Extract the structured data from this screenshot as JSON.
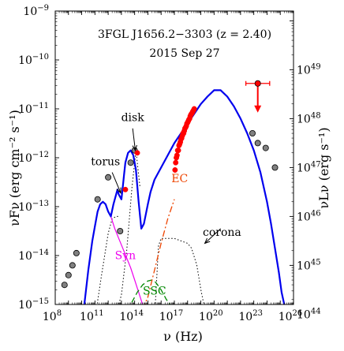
{
  "chart_data": {
    "type": "line",
    "title": "3FGL J1656.2−3303 (z = 2.40)",
    "subtitle": "2015 Sep 27",
    "xlabel": "ν (Hz)",
    "ylabel": "νFν (erg cm⁻² s⁻¹)",
    "y2label": "νLν (erg s⁻¹)",
    "x_scale": "log",
    "y_scale": "log",
    "xlim_log10": [
      8,
      26
    ],
    "ylim_log10": [
      -15,
      -9
    ],
    "x_ticks": [
      {
        "log": 8,
        "label": "10",
        "exp": "8"
      },
      {
        "log": 11,
        "label": "10",
        "exp": "11"
      },
      {
        "log": 14,
        "label": "10",
        "exp": "14"
      },
      {
        "log": 17,
        "label": "10",
        "exp": "17"
      },
      {
        "log": 20,
        "label": "10",
        "exp": "20"
      },
      {
        "log": 23,
        "label": "10",
        "exp": "23"
      },
      {
        "log": 26,
        "label": "10",
        "exp": "26"
      }
    ],
    "y_ticks": [
      {
        "log": -9,
        "label": "10",
        "exp": "−9"
      },
      {
        "log": -10,
        "label": "10",
        "exp": "−10"
      },
      {
        "log": -11,
        "label": "10",
        "exp": "−11"
      },
      {
        "log": -12,
        "label": "10",
        "exp": "−12"
      },
      {
        "log": -13,
        "label": "10",
        "exp": "−13"
      },
      {
        "log": -14,
        "label": "10",
        "exp": "−14"
      },
      {
        "log": -15,
        "label": "10",
        "exp": "−15"
      }
    ],
    "y2_ticks": [
      {
        "log": 49,
        "label": "10",
        "exp": "49"
      },
      {
        "log": 48,
        "label": "10",
        "exp": "48"
      },
      {
        "log": 47,
        "label": "10",
        "exp": "47"
      },
      {
        "log": 46,
        "label": "10",
        "exp": "46"
      },
      {
        "log": 45,
        "label": "10",
        "exp": "45"
      },
      {
        "log": 44,
        "label": "10",
        "exp": "44"
      }
    ],
    "y2_offset_log": 59.2,
    "colors": {
      "total": "#0000ee",
      "syn": "#ee00ee",
      "ssc": "#008800",
      "ec": "#ee4400",
      "data": "#ff0000",
      "archival": "#808080",
      "thermal": "#000000"
    },
    "annotations": [
      {
        "text": "disk",
        "x": 13.85,
        "y": -11.25
      },
      {
        "text": "torus",
        "x": 11.8,
        "y": -12.15
      },
      {
        "text": "EC",
        "x": 17.4,
        "y": -12.5
      },
      {
        "text": "corona",
        "x": 20.6,
        "y": -13.6
      },
      {
        "text": "Syn",
        "x": 13.3,
        "y": -14.07
      },
      {
        "text": "SSC",
        "x": 15.5,
        "y": -14.8
      }
    ],
    "series": [
      {
        "type": "line",
        "x": [
          10.2,
          10.5,
          10.8,
          11.0,
          11.2,
          11.4,
          11.6,
          11.8,
          12.0,
          12.2,
          12.4,
          12.7,
          12.8,
          13.0,
          13.1,
          13.2,
          13.3,
          13.5,
          13.7,
          13.9,
          14.1,
          14.3,
          14.5,
          14.7,
          14.85,
          15.0,
          15.2,
          15.5,
          16.0,
          16.5,
          17.0,
          17.5,
          18.0,
          18.5,
          19.0,
          19.5,
          20.0,
          20.5,
          21.0,
          21.5,
          22.0,
          22.5,
          23.0,
          23.5,
          24.0,
          24.3,
          24.6,
          24.9,
          25.1,
          25.3
        ],
        "y": [
          -15.0,
          -14.3,
          -13.7,
          -13.4,
          -13.1,
          -12.95,
          -12.9,
          -12.95,
          -13.1,
          -13.2,
          -12.95,
          -12.65,
          -12.75,
          -12.85,
          -12.6,
          -12.35,
          -12.1,
          -11.9,
          -11.85,
          -11.95,
          -12.25,
          -12.9,
          -13.45,
          -13.35,
          -13.15,
          -12.95,
          -12.7,
          -12.45,
          -12.2,
          -11.95,
          -11.7,
          -11.5,
          -11.3,
          -11.1,
          -10.9,
          -10.75,
          -10.62,
          -10.62,
          -10.75,
          -10.95,
          -11.2,
          -11.5,
          -11.85,
          -12.3,
          -12.9,
          -13.35,
          -13.85,
          -14.35,
          -14.75,
          -15.0
        ]
      },
      {
        "type": "line",
        "x": [
          12.2,
          12.5,
          12.8,
          13.1,
          13.4,
          13.7,
          14.0,
          14.3,
          14.6,
          14.9
        ],
        "y": [
          -13.2,
          -13.45,
          -13.65,
          -13.85,
          -14.05,
          -14.25,
          -14.5,
          -14.75,
          -15.0,
          -15.3
        ]
      },
      {
        "type": "line",
        "x": [
          13.4,
          13.8,
          14.2,
          14.6,
          15.0,
          15.3,
          15.6,
          16.0,
          16.4,
          16.8,
          17.2
        ],
        "y": [
          -15.1,
          -14.95,
          -14.75,
          -14.6,
          -14.52,
          -14.5,
          -14.55,
          -14.7,
          -14.9,
          -15.05,
          -15.2
        ]
      },
      {
        "type": "line",
        "x": [
          14.6,
          15.0,
          15.5,
          16.0,
          16.5,
          17.0
        ],
        "y": [
          -15.1,
          -14.85,
          -14.3,
          -13.75,
          -13.25,
          -12.85
        ]
      },
      {
        "type": "line",
        "x": [
          11.0,
          11.5,
          12.0,
          12.3,
          12.6,
          12.9
        ],
        "y": [
          -15.3,
          -14.4,
          -13.55,
          -13.25,
          -13.2,
          -13.2
        ]
      },
      {
        "type": "line",
        "x": [
          12.5,
          13.0,
          13.4,
          13.8,
          14.1,
          14.4
        ],
        "y": [
          -15.3,
          -14.8,
          -13.9,
          -12.6,
          -11.85,
          -12.6
        ]
      },
      {
        "type": "line",
        "x": [
          15.5,
          15.8,
          16.0,
          17.0,
          18.0,
          18.3,
          18.7,
          19.0,
          19.3,
          19.5
        ],
        "y": [
          -15.3,
          -13.8,
          -13.65,
          -13.65,
          -13.75,
          -13.85,
          -14.2,
          -14.7,
          -15.1,
          -15.3
        ]
      },
      {
        "type": "scatter",
        "x": [
          8.7,
          9.0,
          9.3,
          9.6,
          11.2,
          12.0,
          12.9,
          13.7,
          14.0,
          22.9,
          23.3,
          23.9,
          24.6
        ],
        "y": [
          -14.6,
          -14.4,
          -14.2,
          -13.95,
          -12.85,
          -12.4,
          -13.5,
          -12.1,
          -11.85,
          -11.5,
          -11.7,
          -11.8,
          -12.2
        ]
      },
      {
        "type": "scatter",
        "x": [
          13.3,
          14.2,
          17.05,
          17.1,
          17.15,
          17.2,
          17.25,
          17.3,
          17.35,
          17.4,
          17.45,
          17.5,
          17.55,
          17.6,
          17.65,
          17.7,
          17.75,
          17.8,
          17.85,
          17.9,
          17.95,
          18.0,
          18.05,
          18.1,
          18.15,
          18.2,
          18.25,
          18.3,
          18.35,
          18.4,
          18.45,
          18.5
        ],
        "y": [
          -12.65,
          -11.9,
          -12.25,
          -12.1,
          -12.0,
          -11.95,
          -11.85,
          -11.85,
          -11.75,
          -11.72,
          -11.68,
          -11.62,
          -11.6,
          -11.55,
          -11.5,
          -11.5,
          -11.45,
          -11.4,
          -11.38,
          -11.35,
          -11.3,
          -11.28,
          -11.25,
          -11.22,
          -11.2,
          -11.15,
          -11.12,
          -11.1,
          -11.08,
          -11.05,
          -11.03,
          -11.0
        ]
      },
      {
        "type": "upper_limit",
        "x": 23.3,
        "y": -10.48,
        "xerr": [
          22.4,
          24.2
        ]
      }
    ]
  }
}
